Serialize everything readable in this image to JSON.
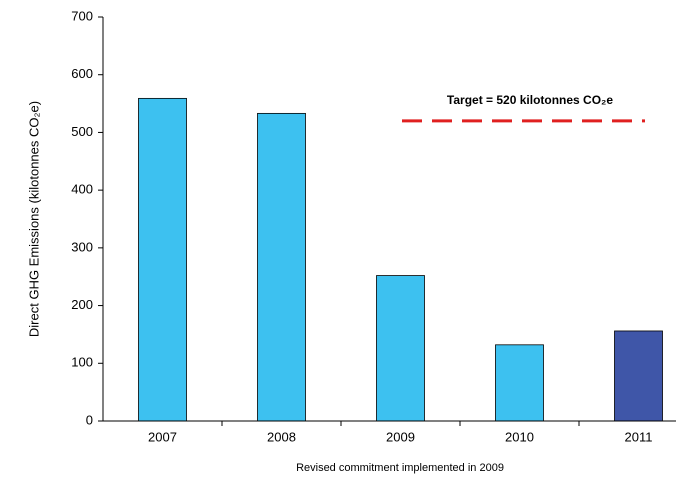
{
  "chart_data": {
    "type": "bar",
    "categories": [
      "2007",
      "2008",
      "2009",
      "2010",
      "2011"
    ],
    "values": [
      559,
      533,
      252,
      132,
      156
    ],
    "colors": [
      "#3dc1f0",
      "#3dc1f0",
      "#3dc1f0",
      "#3dc1f0",
      "#3f56a8"
    ],
    "ylim": [
      0,
      700
    ],
    "yticks": [
      0,
      100,
      200,
      300,
      400,
      500,
      600,
      700
    ],
    "y_label": "Direct GHG Emissions (kilotonnes CO₂e)",
    "x_label": "Revised commitment implemented in 2009",
    "target": {
      "value": 520,
      "label": "Target = 520 kilotonnes CO₂e",
      "color": "#e02020"
    }
  }
}
